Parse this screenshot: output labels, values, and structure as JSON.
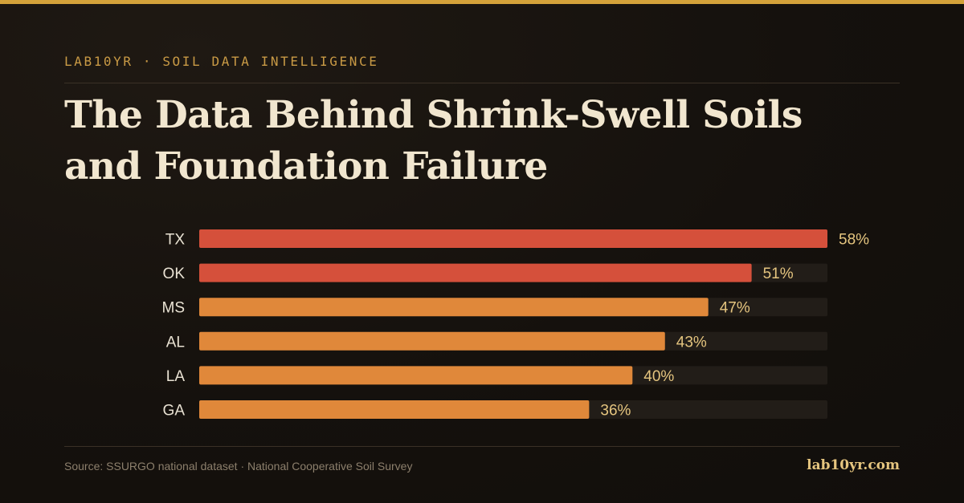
{
  "eyebrow": "LAB10YR · SOIL DATA INTELLIGENCE",
  "title_lines": [
    "The Data Behind Shrink-Swell Soils",
    "and Foundation Failure"
  ],
  "footer": {
    "source": "Source: SSURGO national dataset · National Cooperative Soil Survey",
    "site": "lab10yr.com"
  },
  "colors": {
    "highlight_bar": "#d5503b",
    "standard_bar": "#e0883a",
    "track": "#221d18",
    "label": "#e9e2d3",
    "value_label": "#e5c57f"
  },
  "chart_data": {
    "type": "bar",
    "orientation": "horizontal",
    "categories": [
      "TX",
      "OK",
      "MS",
      "AL",
      "LA",
      "GA"
    ],
    "values": [
      58,
      51,
      47,
      43,
      40,
      36
    ],
    "value_labels": [
      "58%",
      "51%",
      "47%",
      "43%",
      "40%",
      "36%"
    ],
    "highlighted": [
      "TX",
      "OK"
    ],
    "xlim": [
      0,
      58
    ],
    "unit": "%",
    "title": "",
    "xlabel": "",
    "ylabel": ""
  }
}
